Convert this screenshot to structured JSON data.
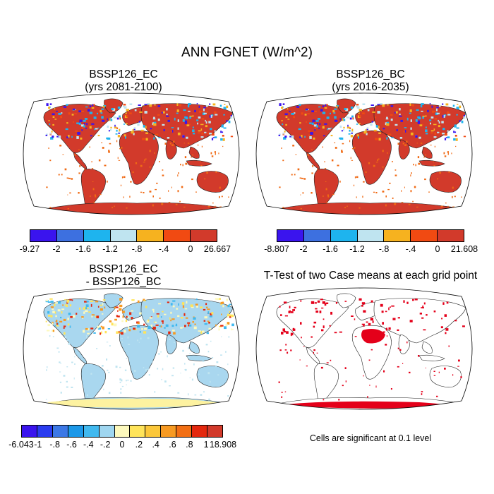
{
  "figure_title": "ANN FGNET (W/m^2)",
  "panels": [
    {
      "title_line1": "BSSP126_EC",
      "title_line2": "(yrs 2081-2100)"
    },
    {
      "title_line1": "BSSP126_BC",
      "title_line2": "(yrs 2016-2035)"
    },
    {
      "title_line1": "BSSP126_EC",
      "title_line2": "- BSSP126_BC"
    },
    {
      "title_line1": "T-Test of two Case means at each grid point",
      "title_line2": ""
    }
  ],
  "colorbars": {
    "ec": {
      "colors": [
        "#3a14ee",
        "#3d70e0",
        "#1eb4ee",
        "#bfe4f0",
        "#f6b21f",
        "#f14a12",
        "#d23a2b"
      ],
      "labels": [
        "-9.27",
        "-2",
        "-1.6",
        "-1.2",
        "-.8",
        "-.4",
        "0",
        "26.667"
      ]
    },
    "bc": {
      "colors": [
        "#3a14ee",
        "#3d70e0",
        "#1eb4ee",
        "#bfe4f0",
        "#f6b21f",
        "#f14a12",
        "#d23a2b"
      ],
      "labels": [
        "-8.807",
        "-2",
        "-1.6",
        "-1.2",
        "-.8",
        "-.4",
        "0",
        "21.608"
      ]
    },
    "diff": {
      "colors": [
        "#3a14ee",
        "#2a3cf0",
        "#3c78e6",
        "#1c98e8",
        "#41b9ef",
        "#9fd6f0",
        "#fdf9bd",
        "#ffe45a",
        "#fbc73a",
        "#f79a22",
        "#f26f14",
        "#e4280e",
        "#d23a2b"
      ],
      "labels": [
        "-6.043",
        "-1",
        "-.8",
        "-.6",
        "-.4",
        "-.2",
        "0",
        ".2",
        ".4",
        ".6",
        ".8",
        "1",
        "18.908"
      ]
    }
  },
  "significance_note": "Cells are significant at 0.1 level",
  "map_fill": {
    "ec": {
      "ocean": "#ffffff",
      "land": "#d23a2b",
      "hatch": "#f06a14",
      "north": [
        "#3a14ee",
        "#1eb4ee",
        "#bfe4f0",
        "#f6b21f",
        "#f14a12"
      ]
    },
    "bc": {
      "ocean": "#ffffff",
      "land": "#d23a2b",
      "hatch": "#f06a14",
      "north": [
        "#3a14ee",
        "#1eb4ee",
        "#bfe4f0",
        "#f6b21f",
        "#f14a12"
      ]
    },
    "diff": {
      "ocean": "#ffffff",
      "land": "#a9d7ef",
      "hatch": "#bfe4f0",
      "north": [
        "#41b9ef",
        "#fdf9bd",
        "#ffe45a",
        "#f79a22",
        "#e4280e"
      ]
    },
    "ttest": {
      "ocean": "#ffffff",
      "land": "#ffffff",
      "hatch": "#ffffff",
      "north": [
        "#e4001a"
      ]
    }
  }
}
